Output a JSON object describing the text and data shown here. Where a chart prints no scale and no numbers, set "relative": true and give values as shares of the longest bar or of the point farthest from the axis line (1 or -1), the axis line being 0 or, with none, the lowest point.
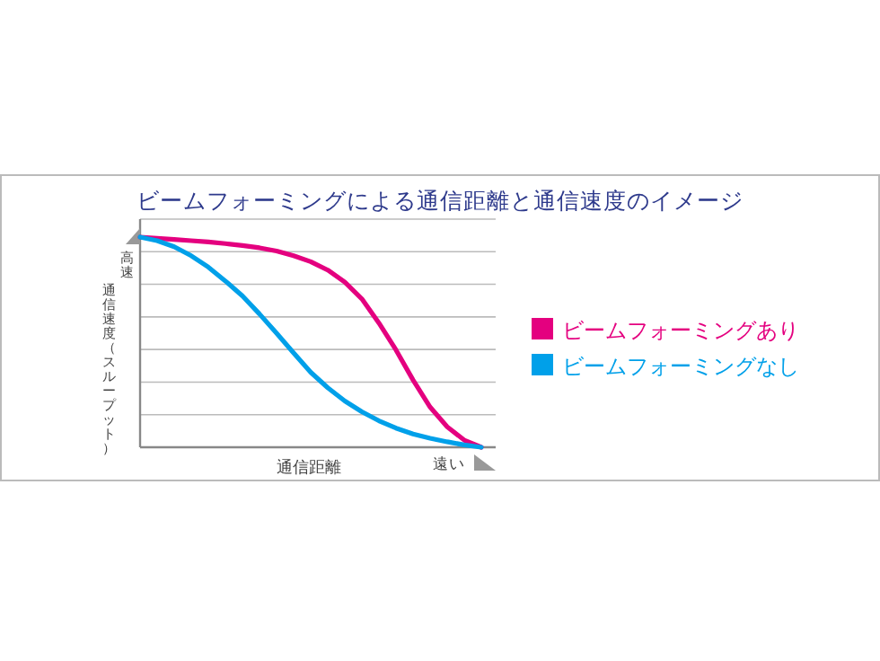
{
  "chart_data": {
    "type": "line",
    "title": "ビームフォーミングによる通信距離と通信速度のイメージ",
    "xlabel": "通信距離",
    "ylabel": "通信速度（スループット）",
    "relative": true,
    "grid": "y",
    "legend": "right",
    "marker": "none",
    "line_style": "solid",
    "annotations": [
      "高速",
      "遠い"
    ],
    "categories": [
      null,
      null,
      null,
      null,
      null,
      null,
      null,
      null,
      null,
      null,
      null,
      null,
      null,
      null,
      null,
      null,
      null,
      null,
      null,
      null,
      null
    ],
    "series": [
      {
        "name": "ビームフォーミングあり",
        "color": "#e4007f",
        "values": [
          1.0,
          0.994,
          0.989,
          0.983,
          0.977,
          0.969,
          0.96,
          0.949,
          0.934,
          0.911,
          0.883,
          0.843,
          0.786,
          0.706,
          0.591,
          0.463,
          0.32,
          0.191,
          0.097,
          0.034,
          0
        ]
      },
      {
        "name": "ビームフォーミングなし",
        "color": "#00a0e9",
        "values": [
          1.0,
          0.983,
          0.954,
          0.911,
          0.857,
          0.791,
          0.72,
          0.634,
          0.543,
          0.449,
          0.357,
          0.283,
          0.22,
          0.169,
          0.126,
          0.091,
          0.063,
          0.043,
          0.026,
          0.011,
          0
        ]
      }
    ]
  }
}
